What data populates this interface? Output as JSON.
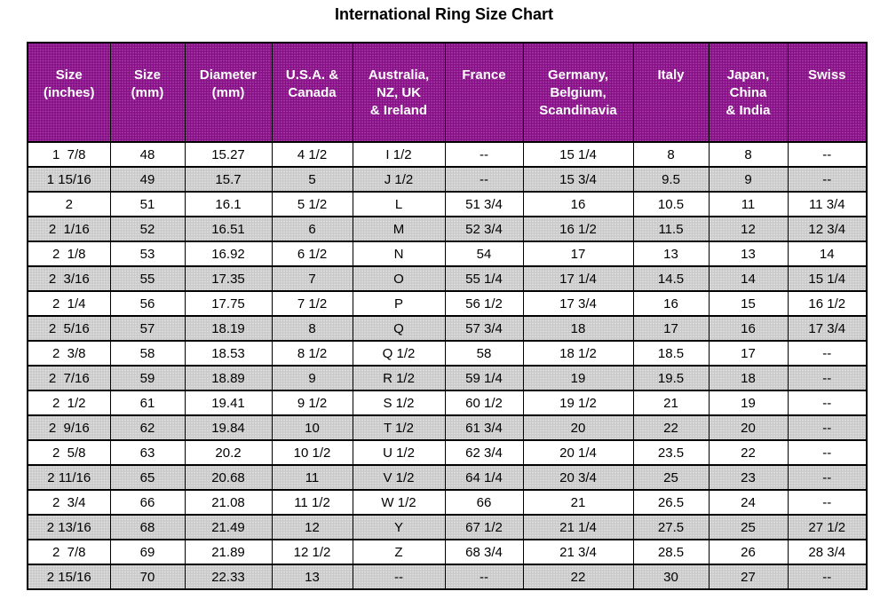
{
  "page_title": "International Ring Size Chart",
  "colors": {
    "header_background": "#860e86",
    "header_text": "#ffffff",
    "row_alt_background": "#c9c9c9",
    "row_background": "#ffffff",
    "border": "#000000",
    "title_text": "#000000"
  },
  "chart_data": {
    "type": "table",
    "title": "International Ring Size Chart",
    "legend_position": "none",
    "grid": true,
    "layout": "header row purple with white bold text; body rows alternate white and dithered gray starting with white",
    "columns": [
      "Size\n(inches)",
      "Size\n(mm)",
      "Diameter\n(mm)",
      "U.S.A. &\nCanada",
      "Australia,\nNZ, UK\n& Ireland",
      "France",
      "Germany,\nBelgium,\nScandinavia",
      "Italy",
      "Japan,\nChina\n& India",
      "Swiss"
    ],
    "rows": [
      [
        "1  7/8",
        "48",
        "15.27",
        "4 1/2",
        "I 1/2",
        "--",
        "15 1/4",
        "8",
        "8",
        "--"
      ],
      [
        "1 15/16",
        "49",
        "15.7",
        "5",
        "J 1/2",
        "--",
        "15 3/4",
        "9.5",
        "9",
        "--"
      ],
      [
        "2",
        "51",
        "16.1",
        "5 1/2",
        "L",
        "51 3/4",
        "16",
        "10.5",
        "11",
        "11 3/4"
      ],
      [
        "2  1/16",
        "52",
        "16.51",
        "6",
        "M",
        "52 3/4",
        "16 1/2",
        "11.5",
        "12",
        "12 3/4"
      ],
      [
        "2  1/8",
        "53",
        "16.92",
        "6 1/2",
        "N",
        "54",
        "17",
        "13",
        "13",
        "14"
      ],
      [
        "2  3/16",
        "55",
        "17.35",
        "7",
        "O",
        "55 1/4",
        "17 1/4",
        "14.5",
        "14",
        "15 1/4"
      ],
      [
        "2  1/4",
        "56",
        "17.75",
        "7 1/2",
        "P",
        "56 1/2",
        "17 3/4",
        "16",
        "15",
        "16 1/2"
      ],
      [
        "2  5/16",
        "57",
        "18.19",
        "8",
        "Q",
        "57 3/4",
        "18",
        "17",
        "16",
        "17 3/4"
      ],
      [
        "2  3/8",
        "58",
        "18.53",
        "8 1/2",
        "Q 1/2",
        "58",
        "18 1/2",
        "18.5",
        "17",
        "--"
      ],
      [
        "2  7/16",
        "59",
        "18.89",
        "9",
        "R 1/2",
        "59 1/4",
        "19",
        "19.5",
        "18",
        "--"
      ],
      [
        "2  1/2",
        "61",
        "19.41",
        "9 1/2",
        "S 1/2",
        "60 1/2",
        "19 1/2",
        "21",
        "19",
        "--"
      ],
      [
        "2  9/16",
        "62",
        "19.84",
        "10",
        "T 1/2",
        "61 3/4",
        "20",
        "22",
        "20",
        "--"
      ],
      [
        "2  5/8",
        "63",
        "20.2",
        "10 1/2",
        "U 1/2",
        "62 3/4",
        "20 1/4",
        "23.5",
        "22",
        "--"
      ],
      [
        "2 11/16",
        "65",
        "20.68",
        "11",
        "V 1/2",
        "64 1/4",
        "20 3/4",
        "25",
        "23",
        "--"
      ],
      [
        "2  3/4",
        "66",
        "21.08",
        "11 1/2",
        "W 1/2",
        "66",
        "21",
        "26.5",
        "24",
        "--"
      ],
      [
        "2 13/16",
        "68",
        "21.49",
        "12",
        "Y",
        "67 1/2",
        "21 1/4",
        "27.5",
        "25",
        "27 1/2"
      ],
      [
        "2  7/8",
        "69",
        "21.89",
        "12 1/2",
        "Z",
        "68 3/4",
        "21 3/4",
        "28.5",
        "26",
        "28 3/4"
      ],
      [
        "2 15/16",
        "70",
        "22.33",
        "13",
        "--",
        "--",
        "22",
        "30",
        "27",
        "--"
      ]
    ]
  }
}
